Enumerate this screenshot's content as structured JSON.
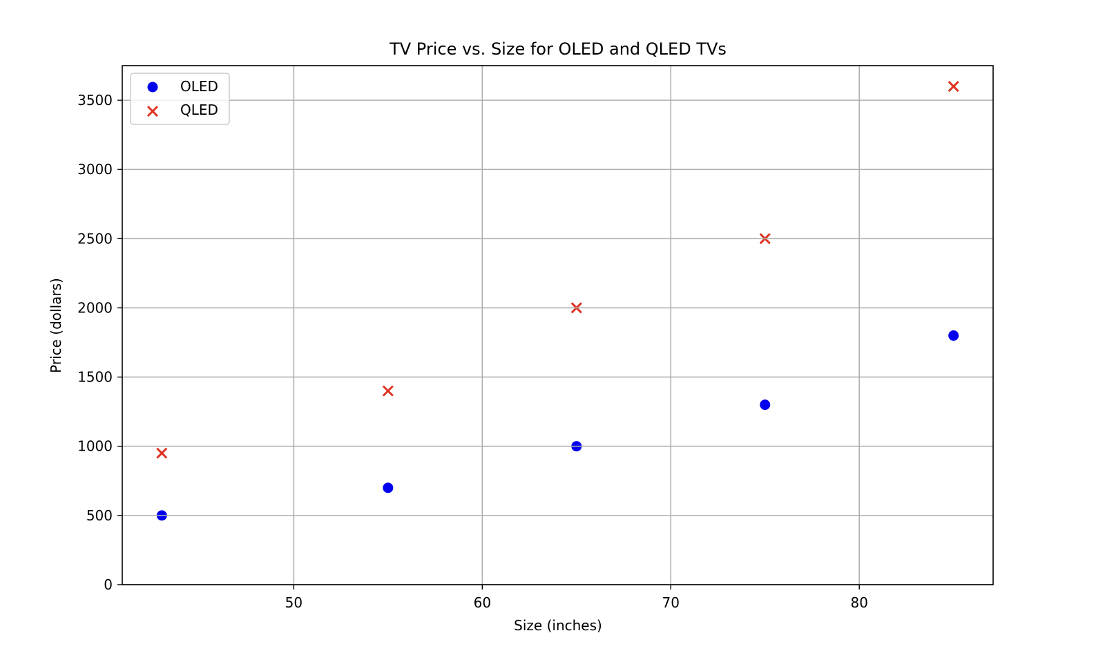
{
  "chart_data": {
    "type": "scatter",
    "title": "TV Price vs. Size for OLED and QLED TVs",
    "xlabel": "Size (inches)",
    "ylabel": "Price (dollars)",
    "xlim": [
      40.9,
      87.1
    ],
    "ylim": [
      0,
      3750
    ],
    "xticks": [
      50,
      60,
      70,
      80
    ],
    "yticks": [
      0,
      500,
      1000,
      1500,
      2000,
      2500,
      3000,
      3500
    ],
    "grid": true,
    "legend_position": "upper left",
    "series": [
      {
        "name": "OLED",
        "marker": "circle",
        "color": "#0000ee",
        "x": [
          43,
          55,
          65,
          75,
          85
        ],
        "y": [
          500,
          700,
          1000,
          1300,
          1800
        ]
      },
      {
        "name": "QLED",
        "marker": "x",
        "color": "#dd3322",
        "x": [
          43,
          55,
          65,
          75,
          85
        ],
        "y": [
          950,
          1400,
          2000,
          2500,
          3600
        ]
      }
    ]
  }
}
